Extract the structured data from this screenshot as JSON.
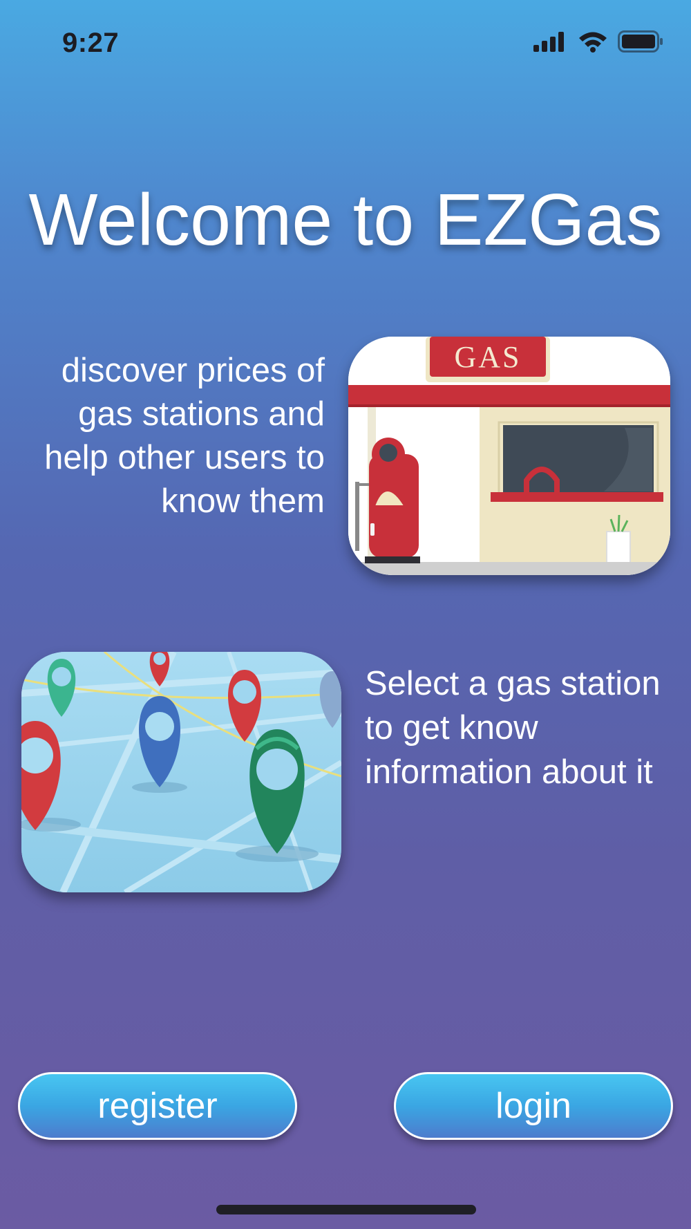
{
  "status_bar": {
    "time": "9:27",
    "icons": [
      "cellular-signal-icon",
      "wifi-icon",
      "battery-icon"
    ]
  },
  "welcome": {
    "title": "Welcome to EZGas"
  },
  "feature_1": {
    "text": "discover prices of gas stations and help other users to know them",
    "image_sign_text": "GAS"
  },
  "feature_2": {
    "text": "Select a gas station to get know information about it"
  },
  "actions": {
    "register_label": "register",
    "login_label": "login"
  },
  "colors": {
    "gradient_top": "#4aa9e2",
    "gradient_bottom": "#6b5ba3",
    "button_accent": "#3aa6e3",
    "gas_sign_red": "#c8303a"
  }
}
